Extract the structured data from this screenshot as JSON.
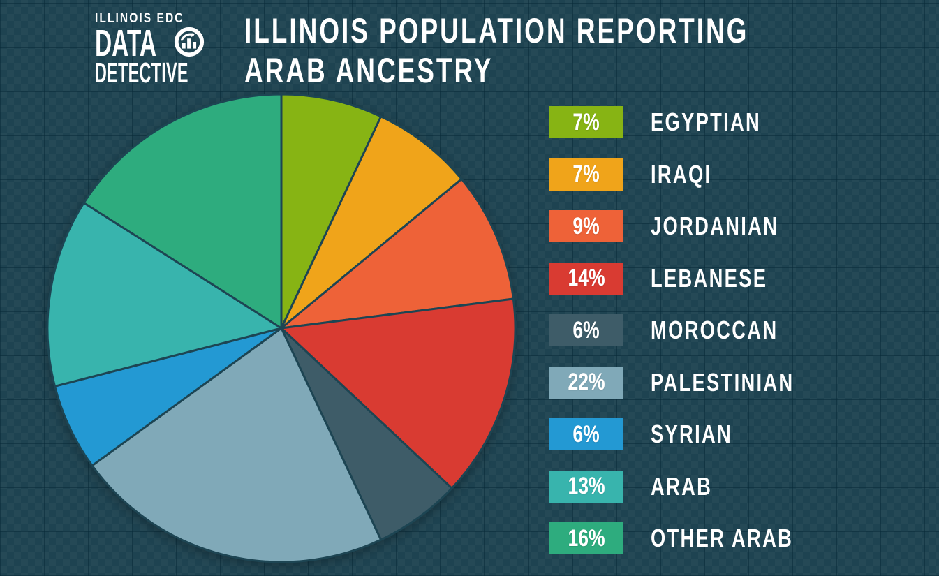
{
  "logo": {
    "line1": "ILLINOIS EDC",
    "line2": "DATA",
    "line3": "DETECTIVE",
    "icon": "bar-chart-lens-icon"
  },
  "title": {
    "line1": "ILLINOIS POPULATION REPORTING",
    "line2": "ARAB ANCESTRY"
  },
  "colors": {
    "background": "#1E4351",
    "slice_stroke": "#1D4553",
    "text": "#FFFFFF"
  },
  "chart_data": {
    "type": "pie",
    "title": "Illinois Population Reporting Arab Ancestry",
    "start_angle_deg": 0,
    "direction": "clockwise",
    "legend_position": "right",
    "slices": [
      {
        "label": "EGYPTIAN",
        "value_pct": 7,
        "percent_label": "7%",
        "color": "#87B414"
      },
      {
        "label": "IRAQI",
        "value_pct": 7,
        "percent_label": "7%",
        "color": "#F0A41A"
      },
      {
        "label": "JORDANIAN",
        "value_pct": 9,
        "percent_label": "9%",
        "color": "#EE6238"
      },
      {
        "label": "LEBANESE",
        "value_pct": 14,
        "percent_label": "14%",
        "color": "#D93B32"
      },
      {
        "label": "MOROCCAN",
        "value_pct": 6,
        "percent_label": "6%",
        "color": "#3E5C68"
      },
      {
        "label": "PALESTINIAN",
        "value_pct": 22,
        "percent_label": "22%",
        "color": "#80A9B8"
      },
      {
        "label": "SYRIAN",
        "value_pct": 6,
        "percent_label": "6%",
        "color": "#2399D3"
      },
      {
        "label": "ARAB",
        "value_pct": 13,
        "percent_label": "13%",
        "color": "#38B4AD"
      },
      {
        "label": "OTHER ARAB",
        "value_pct": 16,
        "percent_label": "16%",
        "color": "#2EAC7E"
      }
    ]
  }
}
